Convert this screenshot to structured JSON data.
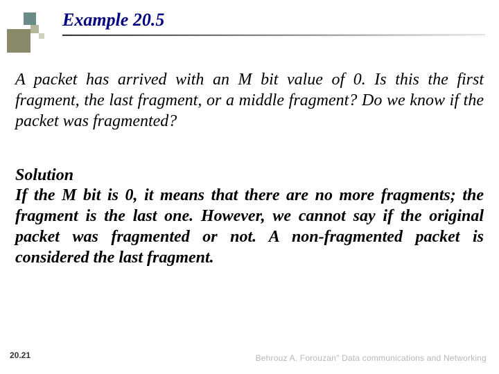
{
  "header": {
    "title": "Example 20.5",
    "title_color": "#000080"
  },
  "body": {
    "question": "A packet has arrived with an M bit value of 0. Is this the first fragment, the last fragment, or a middle fragment? Do we know if the packet was fragmented?",
    "solution_label": "Solution",
    "solution_text": "If the M bit is 0, it means that there are no more fragments; the fragment is the last one. However, we cannot say if the original packet was fragmented or not. A non-fragmented packet is considered the last fragment."
  },
  "footer": {
    "page_number": "20.21",
    "credit": "Behrouz A. Forouzan\" Data communications and Networking"
  },
  "decor": {
    "colors": {
      "big": "#8a8a6a",
      "top": "#6a8b88",
      "mid": "#b5b59a",
      "tiny": "#d0d0c0"
    }
  }
}
